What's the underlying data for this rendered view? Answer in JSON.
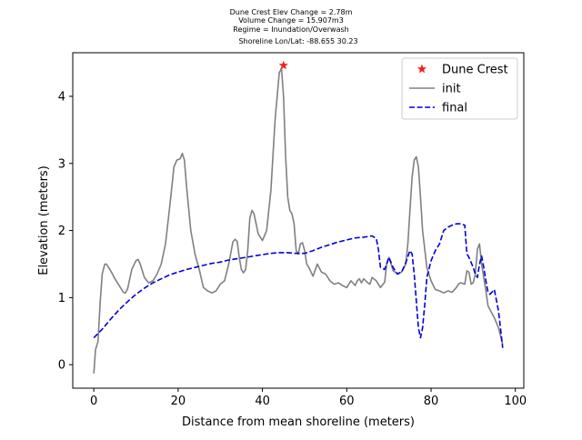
{
  "chart_data": {
    "type": "line",
    "title_lines": [
      "Dune Crest Elev Change = 2.78m",
      "Volume Change = 15.907m3",
      "Regime = Inundation/Overwash",
      "Shoreline Lon/Lat: -88.655 30.23"
    ],
    "xlabel": "Distance from mean shoreline (meters)",
    "ylabel": "Elevation (meters)",
    "xlim": [
      -5,
      102
    ],
    "ylim": [
      -0.35,
      4.65
    ],
    "xticks": [
      0,
      20,
      40,
      60,
      80,
      100
    ],
    "yticks": [
      0,
      1,
      2,
      3,
      4
    ],
    "grid": false,
    "legend_position": "top-right",
    "series": [
      {
        "name": "Dune Crest",
        "style": "marker",
        "color": "#ee2222",
        "x": [
          45
        ],
        "y": [
          4.46
        ]
      },
      {
        "name": "init",
        "style": "solid",
        "color": "#808080",
        "x": [
          0,
          0.4,
          1,
          1.5,
          2,
          2.6,
          3,
          3.5,
          4,
          5,
          6,
          7,
          7.5,
          8,
          9,
          10,
          10.5,
          11,
          12,
          13,
          14,
          15,
          16,
          17,
          18,
          19,
          19.7,
          20.5,
          21,
          21.5,
          22,
          23,
          24,
          25,
          26,
          27,
          28,
          29,
          30,
          31,
          32,
          33,
          33.5,
          34,
          34.5,
          35,
          35.5,
          36,
          36.5,
          37,
          37.5,
          38,
          39,
          40,
          41,
          42,
          43,
          44,
          44.5,
          45,
          45.5,
          46,
          46.5,
          47,
          47.5,
          48,
          48.5,
          49,
          49.5,
          50,
          50.5,
          51,
          52,
          53,
          54,
          55,
          56,
          57,
          58,
          59,
          60,
          61,
          62,
          62.5,
          63,
          63.5,
          64,
          65,
          65.5,
          66,
          67,
          68,
          69,
          69.5,
          70,
          71,
          72,
          73,
          74,
          74.5,
          75,
          75.5,
          76,
          76.5,
          77,
          77.5,
          78,
          79,
          80,
          81,
          82,
          83,
          84,
          85,
          86,
          86.5,
          87,
          88,
          88.5,
          89,
          89.5,
          90,
          90.5,
          91,
          91.5,
          92,
          93,
          93.5,
          94,
          95,
          96,
          97
        ],
        "y": [
          -0.13,
          0.22,
          0.35,
          0.92,
          1.35,
          1.5,
          1.5,
          1.45,
          1.4,
          1.28,
          1.18,
          1.08,
          1.07,
          1.13,
          1.42,
          1.55,
          1.57,
          1.5,
          1.3,
          1.22,
          1.25,
          1.35,
          1.5,
          1.8,
          2.35,
          2.95,
          3.05,
          3.07,
          3.15,
          3.05,
          2.65,
          2.0,
          1.65,
          1.42,
          1.15,
          1.1,
          1.07,
          1.1,
          1.2,
          1.25,
          1.5,
          1.83,
          1.87,
          1.84,
          1.6,
          1.42,
          1.37,
          1.42,
          1.7,
          2.18,
          2.3,
          2.25,
          1.95,
          1.85,
          2.0,
          2.6,
          3.65,
          4.35,
          4.42,
          4.0,
          3.1,
          2.5,
          2.3,
          2.25,
          2.1,
          1.7,
          1.65,
          1.8,
          1.82,
          1.7,
          1.5,
          1.45,
          1.32,
          1.5,
          1.38,
          1.35,
          1.25,
          1.2,
          1.22,
          1.18,
          1.15,
          1.25,
          1.18,
          1.25,
          1.28,
          1.22,
          1.28,
          1.22,
          1.2,
          1.3,
          1.25,
          1.15,
          1.23,
          1.5,
          1.6,
          1.4,
          1.36,
          1.38,
          1.5,
          1.8,
          2.3,
          2.8,
          3.05,
          3.1,
          2.95,
          2.5,
          2.0,
          1.45,
          1.25,
          1.12,
          1.1,
          1.07,
          1.1,
          1.08,
          1.15,
          1.2,
          1.22,
          1.2,
          1.4,
          1.38,
          1.2,
          1.22,
          1.35,
          1.72,
          1.8,
          1.5,
          1.1,
          0.88,
          0.82,
          0.7,
          0.55,
          0.3
        ]
      },
      {
        "name": "final",
        "style": "dashed",
        "color": "#0000dd",
        "x": [
          0,
          2,
          4,
          6,
          8,
          10,
          12,
          14,
          16,
          18,
          20,
          22,
          24,
          26,
          28,
          30,
          32,
          34,
          36,
          38,
          40,
          42,
          44,
          46,
          48,
          50,
          52,
          54,
          56,
          58,
          60,
          62,
          64,
          66,
          67,
          67.5,
          68,
          69,
          70,
          71,
          72,
          73,
          74,
          75,
          75.5,
          76,
          76.5,
          77,
          77.5,
          78,
          78.5,
          79,
          80,
          81,
          82,
          83,
          84,
          85,
          86,
          87,
          88,
          88.5,
          89,
          90,
          90.5,
          91,
          91.5,
          92,
          92.5,
          93,
          93.5,
          94,
          95,
          96,
          97
        ],
        "y": [
          0.4,
          0.53,
          0.68,
          0.82,
          0.94,
          1.05,
          1.14,
          1.22,
          1.28,
          1.34,
          1.38,
          1.42,
          1.45,
          1.48,
          1.51,
          1.53,
          1.56,
          1.58,
          1.6,
          1.62,
          1.64,
          1.66,
          1.67,
          1.67,
          1.66,
          1.66,
          1.7,
          1.75,
          1.79,
          1.83,
          1.86,
          1.89,
          1.9,
          1.92,
          1.88,
          1.72,
          1.45,
          1.42,
          1.6,
          1.45,
          1.35,
          1.38,
          1.52,
          1.7,
          1.65,
          1.35,
          0.95,
          0.55,
          0.4,
          0.55,
          0.9,
          1.3,
          1.55,
          1.7,
          1.8,
          2.0,
          2.05,
          2.08,
          2.1,
          2.1,
          2.08,
          1.65,
          1.6,
          1.45,
          1.35,
          1.3,
          1.5,
          1.62,
          1.45,
          1.25,
          1.08,
          1.05,
          1.12,
          0.8,
          0.25
        ]
      }
    ]
  }
}
